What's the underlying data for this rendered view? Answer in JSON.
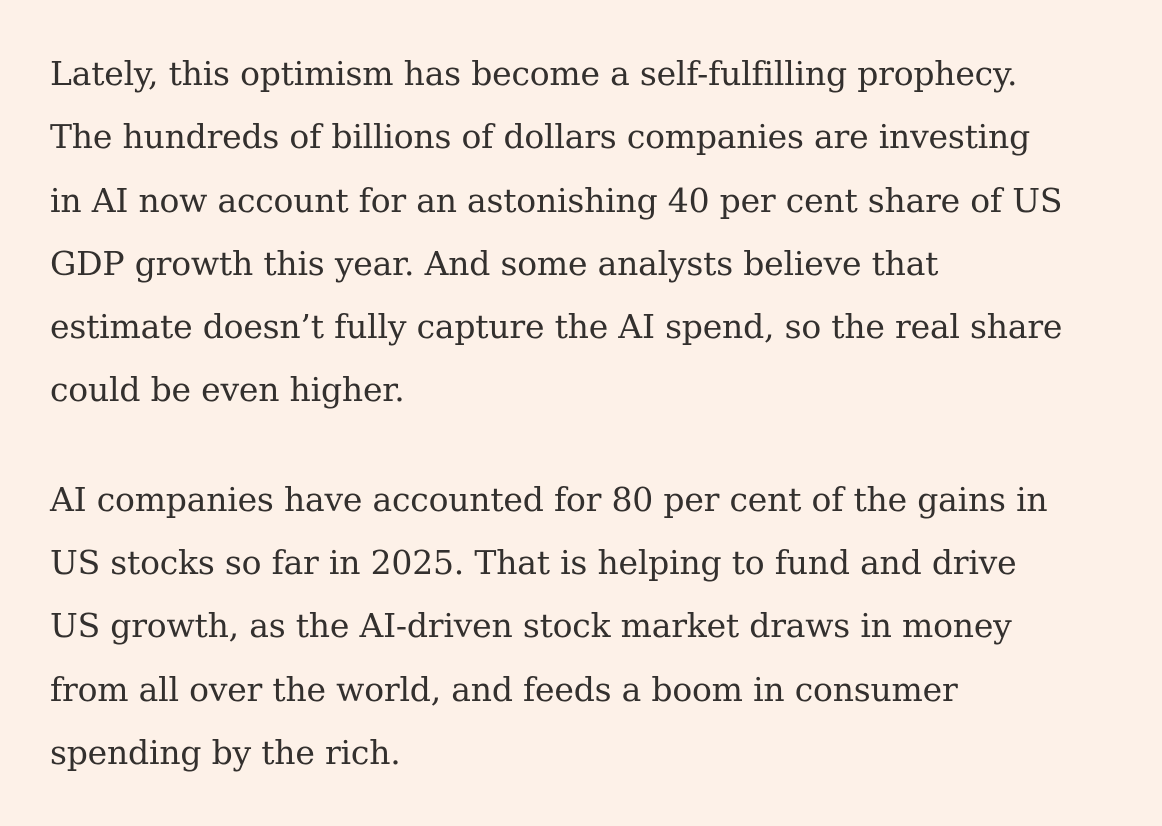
{
  "article": {
    "background_color": "#fdf1e8",
    "text_color": "#33302e",
    "paragraphs": [
      {
        "lines": [
          "Lately, this optimism has become a self-fulfilling prophecy.",
          "The hundreds of billions of dollars companies are investing",
          "in AI now account for an astonishing 40 per cent share of US",
          "GDP growth this year. And some analysts believe that",
          "estimate doesn’t fully capture the AI spend, so the real share",
          "could be even higher."
        ]
      },
      {
        "lines": [
          "AI companies have accounted for 80 per cent of the gains in",
          "US stocks so far in 2025. That is helping to fund and drive",
          "US growth, as the AI-driven stock market draws in money",
          "from all over the world, and feeds a boom in consumer",
          "spending by the rich."
        ]
      }
    ]
  }
}
